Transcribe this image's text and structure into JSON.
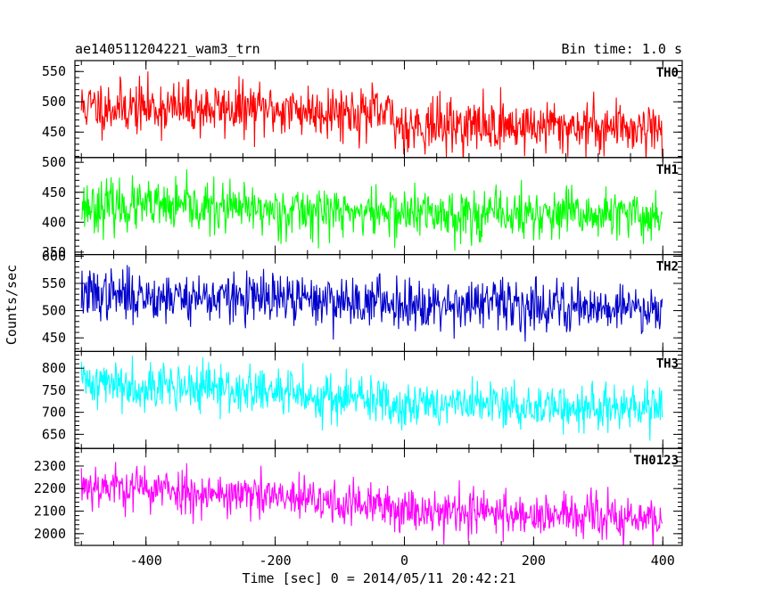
{
  "chart_data": {
    "type": "line",
    "title": "ae140511204221_wam3_trn",
    "subtitle": "Bin time: 1.0 s",
    "xlabel": "Time [sec] 0 = 2014/05/11 20:42:21",
    "ylabel": "Counts/sec",
    "xlim": [
      -510,
      430
    ],
    "xticks": [
      -400,
      -200,
      0,
      200,
      400
    ],
    "x_range": [
      -500,
      399
    ],
    "bin_time": 1.0,
    "panels": [
      {
        "name": "TH0",
        "color": "#ff0000",
        "ylim": [
          408,
          568
        ],
        "yticks": [
          450,
          500,
          550
        ],
        "profile": [
          [
            -500,
            492
          ],
          [
            -100,
            485
          ],
          [
            -20,
            478
          ],
          [
            -15,
            462
          ],
          [
            399,
            458
          ]
        ],
        "noise_sd": 22,
        "seed": 11
      },
      {
        "name": "TH1",
        "color": "#00ff00",
        "ylim": [
          346,
          508
        ],
        "yticks": [
          350,
          400,
          450,
          500
        ],
        "profile": [
          [
            -500,
            428
          ],
          [
            0,
            415
          ],
          [
            399,
            410
          ]
        ],
        "noise_sd": 21,
        "seed": 23
      },
      {
        "name": "TH2",
        "color": "#0000cc",
        "ylim": [
          425,
          603
        ],
        "yticks": [
          450,
          500,
          550,
          600
        ],
        "profile": [
          [
            -500,
            530
          ],
          [
            0,
            515
          ],
          [
            399,
            505
          ]
        ],
        "noise_sd": 23,
        "seed": 37
      },
      {
        "name": "TH3",
        "color": "#00ffff",
        "ylim": [
          618,
          838
        ],
        "yticks": [
          650,
          700,
          750,
          800
        ],
        "profile": [
          [
            -500,
            770
          ],
          [
            -200,
            745
          ],
          [
            0,
            720
          ],
          [
            399,
            705
          ]
        ],
        "noise_sd": 27,
        "seed": 41
      },
      {
        "name": "TH0123",
        "color": "#ff00ff",
        "ylim": [
          1948,
          2378
        ],
        "yticks": [
          2000,
          2100,
          2200,
          2300
        ],
        "profile": [
          [
            -500,
            2220
          ],
          [
            -200,
            2160
          ],
          [
            0,
            2110
          ],
          [
            399,
            2060
          ]
        ],
        "noise_sd": 50,
        "seed": 53
      }
    ]
  }
}
